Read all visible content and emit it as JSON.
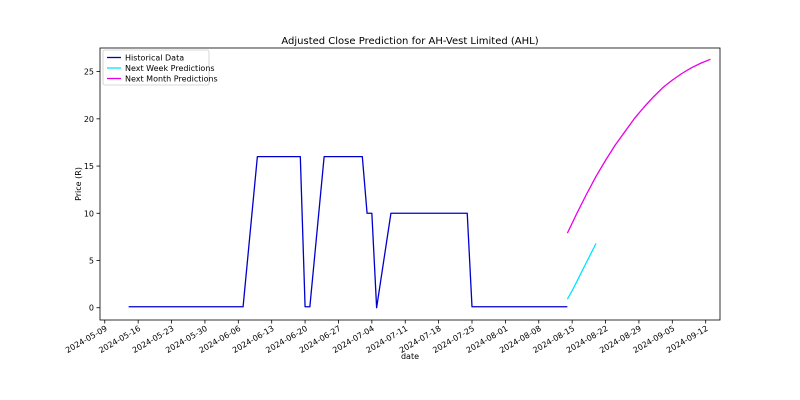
{
  "chart_data": {
    "type": "line",
    "title": "Adjusted Close Prediction for AH-Vest Limited (AHL)",
    "xlabel": "date",
    "ylabel": "Price (R)",
    "xlim": [
      "2024-05-08",
      "2024-09-15"
    ],
    "ylim": [
      -1.3,
      27.5
    ],
    "x_ticks": [
      "2024-05-09",
      "2024-05-16",
      "2024-05-23",
      "2024-05-30",
      "2024-06-06",
      "2024-06-13",
      "2024-06-20",
      "2024-06-27",
      "2024-07-04",
      "2024-07-11",
      "2024-07-18",
      "2024-07-25",
      "2024-08-01",
      "2024-08-08",
      "2024-08-15",
      "2024-08-22",
      "2024-08-29",
      "2024-09-05",
      "2024-09-12"
    ],
    "y_ticks": [
      0,
      5,
      10,
      15,
      20,
      25
    ],
    "grid": false,
    "legend_position": "top-left",
    "series": [
      {
        "name": "Historical Data",
        "color": "#0000cc",
        "x": [
          "2024-05-14",
          "2024-06-07",
          "2024-06-10",
          "2024-06-19",
          "2024-06-20",
          "2024-06-21",
          "2024-06-24",
          "2024-07-02",
          "2024-07-03",
          "2024-07-04",
          "2024-07-05",
          "2024-07-08",
          "2024-07-24",
          "2024-07-25",
          "2024-08-14"
        ],
        "y": [
          0.1,
          0.1,
          16,
          16,
          0.1,
          0.1,
          16,
          16,
          10,
          10,
          0.0,
          10,
          10,
          0.1,
          0.1
        ]
      },
      {
        "name": "Next Week Predictions",
        "color": "#00e5ff",
        "x": [
          "2024-08-14",
          "2024-08-15",
          "2024-08-16",
          "2024-08-17",
          "2024-08-18",
          "2024-08-19",
          "2024-08-20"
        ],
        "y": [
          0.9,
          1.8,
          2.8,
          3.8,
          4.8,
          5.8,
          6.8
        ]
      },
      {
        "name": "Next Month Predictions",
        "color": "#e600e6",
        "x": [
          "2024-08-14",
          "2024-08-16",
          "2024-08-18",
          "2024-08-20",
          "2024-08-22",
          "2024-08-24",
          "2024-08-26",
          "2024-08-28",
          "2024-08-30",
          "2024-09-01",
          "2024-09-03",
          "2024-09-05",
          "2024-09-07",
          "2024-09-09",
          "2024-09-11",
          "2024-09-13"
        ],
        "y": [
          7.9,
          10.0,
          12.0,
          13.9,
          15.6,
          17.2,
          18.6,
          20.0,
          21.2,
          22.3,
          23.3,
          24.1,
          24.8,
          25.4,
          25.9,
          26.3
        ]
      }
    ]
  }
}
